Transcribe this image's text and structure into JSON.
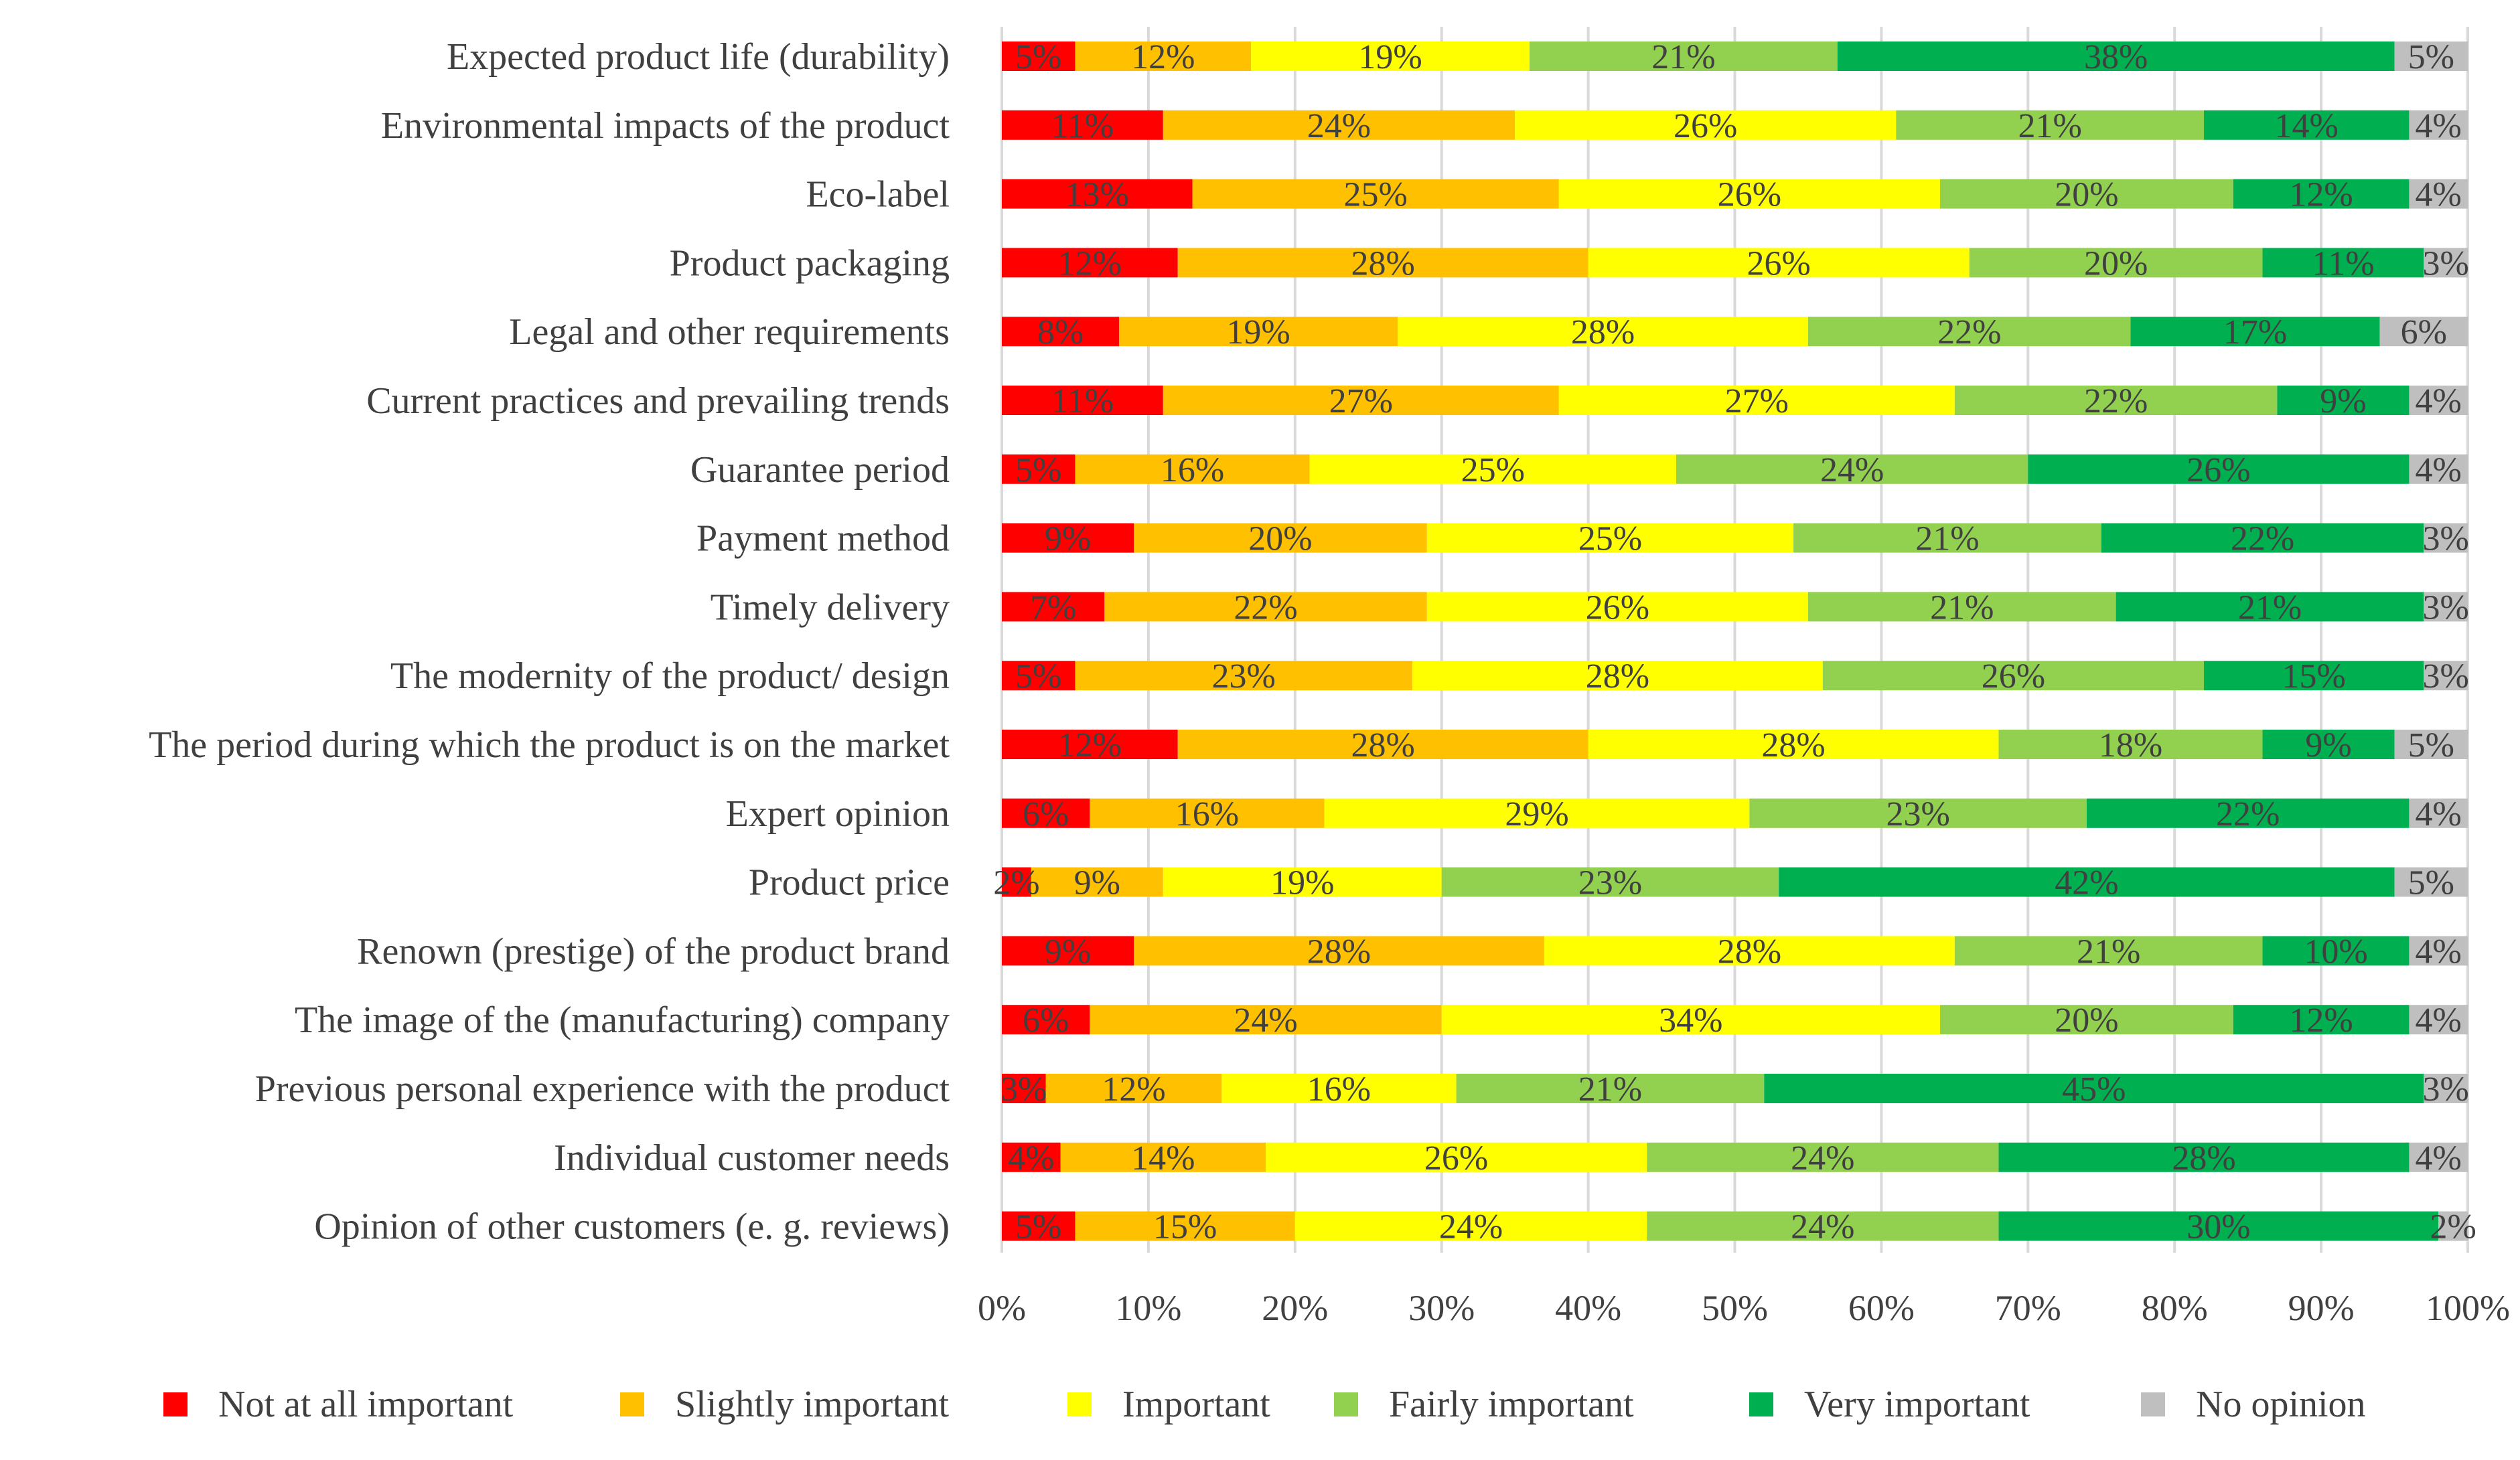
{
  "chart_data": {
    "type": "bar",
    "orientation": "horizontal",
    "stacked": "percent",
    "title": "",
    "xlabel": "",
    "ylabel": "",
    "xlim": [
      0,
      100
    ],
    "x_ticks": [
      "0%",
      "10%",
      "20%",
      "30%",
      "40%",
      "50%",
      "60%",
      "70%",
      "80%",
      "90%",
      "100%"
    ],
    "grid": true,
    "legend_position": "bottom",
    "categories": [
      "Expected product life (durability)",
      "Environmental impacts of the product",
      "Eco-label",
      "Product packaging",
      "Legal and other requirements",
      "Current practices and prevailing trends",
      "Guarantee period",
      "Payment method",
      "Timely delivery",
      "The modernity of the product/ design",
      "The period during which the product is on the market",
      "Expert opinion",
      "Product price",
      "Renown (prestige) of the product brand",
      "The image of the (manufacturing) company",
      "Previous personal experience with the product",
      "Individual customer needs",
      "Opinion of other customers (e. g. reviews)"
    ],
    "series": [
      {
        "name": "Not at all important",
        "color": "#ff0000",
        "values": [
          5,
          11,
          13,
          12,
          8,
          11,
          5,
          9,
          7,
          5,
          12,
          6,
          2,
          9,
          6,
          3,
          4,
          5
        ]
      },
      {
        "name": "Slightly important",
        "color": "#ffc000",
        "values": [
          12,
          24,
          25,
          28,
          19,
          27,
          16,
          20,
          22,
          23,
          28,
          16,
          9,
          28,
          24,
          12,
          14,
          15
        ]
      },
      {
        "name": "Important",
        "color": "#ffff00",
        "values": [
          19,
          26,
          26,
          26,
          28,
          27,
          25,
          25,
          26,
          28,
          28,
          29,
          19,
          28,
          34,
          16,
          26,
          24
        ]
      },
      {
        "name": "Fairly important",
        "color": "#92d050",
        "values": [
          21,
          21,
          20,
          20,
          22,
          22,
          24,
          21,
          21,
          26,
          18,
          23,
          23,
          21,
          20,
          21,
          24,
          24
        ]
      },
      {
        "name": "Very important",
        "color": "#00b050",
        "values": [
          38,
          14,
          12,
          11,
          17,
          9,
          26,
          22,
          21,
          15,
          9,
          22,
          42,
          10,
          12,
          45,
          28,
          30
        ]
      },
      {
        "name": "No opinion",
        "color": "#bfbfbf",
        "values": [
          5,
          4,
          4,
          3,
          6,
          4,
          4,
          3,
          3,
          3,
          5,
          4,
          5,
          4,
          4,
          3,
          4,
          2
        ]
      }
    ]
  }
}
